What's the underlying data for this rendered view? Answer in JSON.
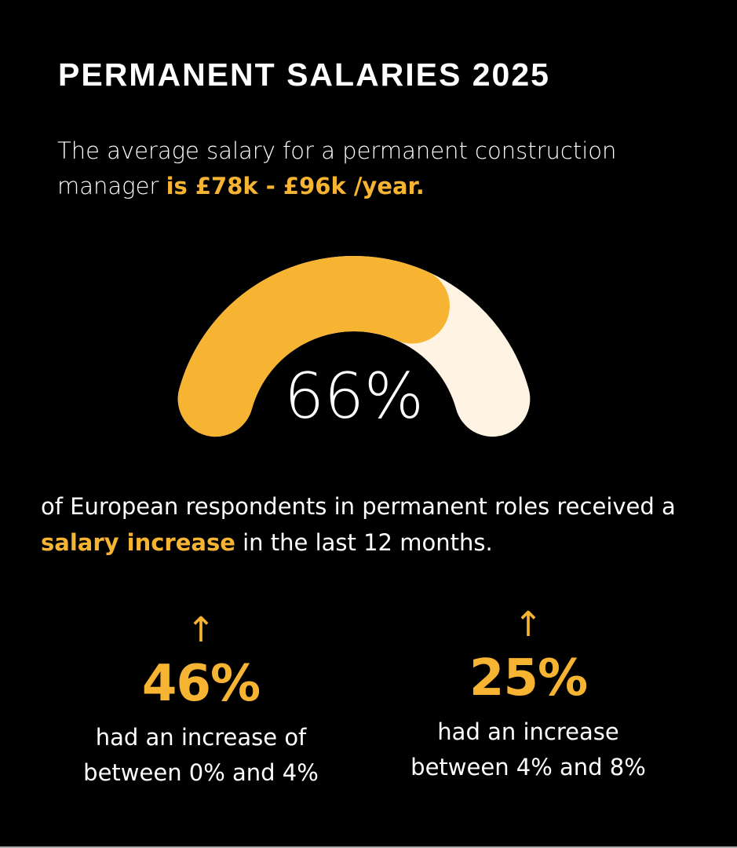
{
  "title": "PERMANENT SALARIES 2025",
  "intro": {
    "text": "The average salary for a permanent construction manager ",
    "highlight": "is £78k - £96k /year."
  },
  "colors": {
    "accent": "#f7b433",
    "track": "#fff4e3",
    "background": "#000000",
    "text": "#ffffff"
  },
  "chart_data": {
    "type": "gauge",
    "value": 66,
    "max": 100,
    "label": "66%"
  },
  "description": {
    "pre": "of European respondents in permanent roles received a ",
    "highlight": "salary increase",
    "post": " in the last 12 months."
  },
  "stats": [
    {
      "icon": "arrow-up-icon",
      "value": "46%",
      "line1": "had an increase of",
      "line2": "between 0% and 4%"
    },
    {
      "icon": "arrow-up-icon",
      "value": "25%",
      "line1": "had an increase",
      "line2": "between 4% and 8%"
    }
  ]
}
